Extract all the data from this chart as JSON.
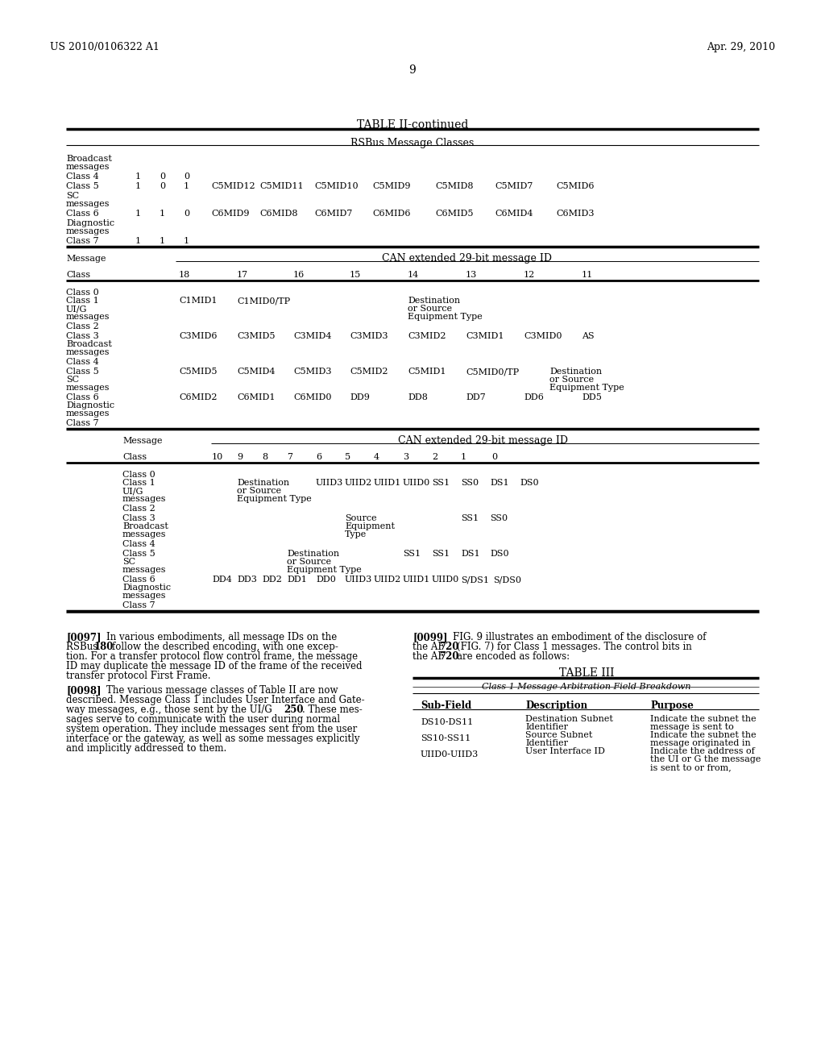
{
  "header_left": "US 2010/0106322 A1",
  "header_right": "Apr. 29, 2010",
  "page_number": "9",
  "background_color": "#ffffff",
  "text_color": "#000000"
}
